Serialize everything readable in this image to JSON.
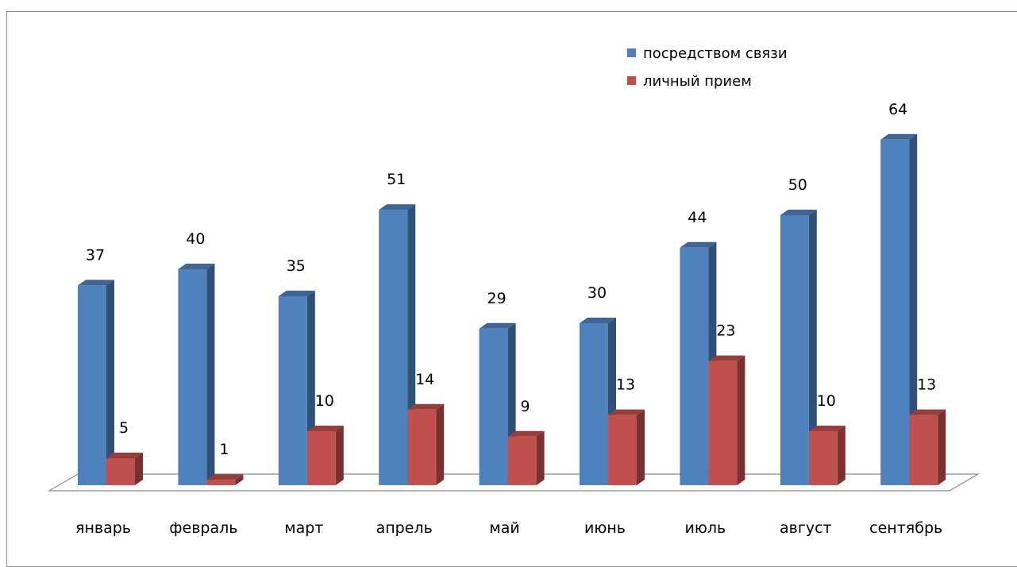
{
  "chart_data": {
    "type": "bar",
    "categories": [
      "январь",
      "февраль",
      "март",
      "апрель",
      "май",
      "июнь",
      "июль",
      "август",
      "сентябрь"
    ],
    "series": [
      {
        "name": "посредством связи",
        "values": [
          37,
          40,
          35,
          51,
          29,
          30,
          44,
          50,
          64
        ],
        "color": "#4f81bd"
      },
      {
        "name": "личный прием",
        "values": [
          5,
          1,
          10,
          14,
          9,
          13,
          23,
          10,
          13
        ],
        "color": "#c0504d"
      }
    ],
    "ylim": [
      0,
      70
    ],
    "grid": false,
    "legend": "top-right",
    "data_labels": true,
    "style": "3d-clustered-column"
  }
}
